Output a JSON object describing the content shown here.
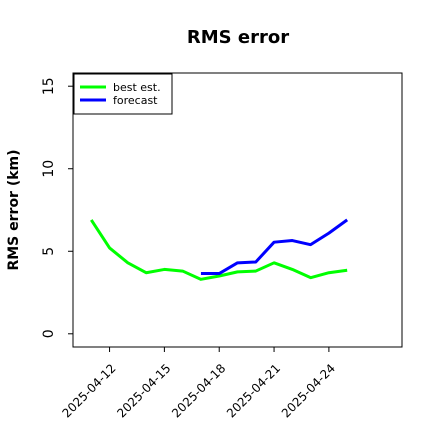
{
  "chart_data": {
    "type": "line",
    "title": "RMS error",
    "ylabel": "RMS error (km)",
    "xlabel": "",
    "x": [
      "2025-04-11",
      "2025-04-12",
      "2025-04-13",
      "2025-04-14",
      "2025-04-15",
      "2025-04-16",
      "2025-04-17",
      "2025-04-18",
      "2025-04-19",
      "2025-04-20",
      "2025-04-21",
      "2025-04-22",
      "2025-04-23",
      "2025-04-24",
      "2025-04-25"
    ],
    "xticks": [
      "2025-04-12",
      "2025-04-15",
      "2025-04-18",
      "2025-04-21",
      "2025-04-24"
    ],
    "xlim": [
      "2025-04-10",
      "2025-04-28"
    ],
    "ylim": [
      -0.8,
      15.8
    ],
    "yticks": [
      0,
      5,
      10,
      15
    ],
    "grid": false,
    "legend_position": "upper left",
    "series": [
      {
        "name": "best est.",
        "color": "#00ff00",
        "values": [
          6.9,
          5.2,
          4.3,
          3.7,
          3.9,
          3.8,
          3.3,
          3.5,
          3.75,
          3.8,
          4.3,
          3.9,
          3.4,
          3.7,
          3.85
        ]
      },
      {
        "name": "forecast",
        "color": "#0000ff",
        "values": [
          null,
          null,
          null,
          null,
          null,
          null,
          3.65,
          3.65,
          4.3,
          4.35,
          5.55,
          5.65,
          5.4,
          6.1,
          6.9
        ]
      }
    ]
  }
}
